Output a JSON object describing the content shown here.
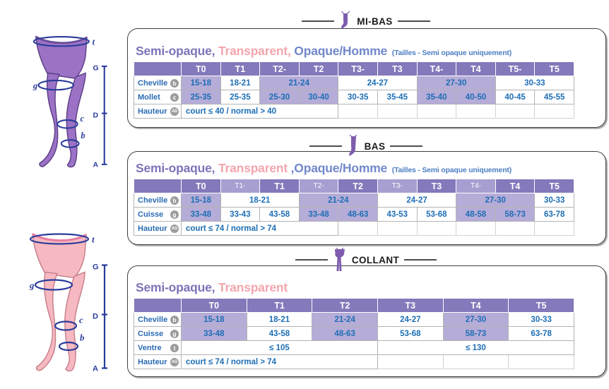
{
  "figures": [
    {
      "alt": "legs wearing purple semi-opaque tights",
      "fill": "#9B72C5",
      "outline": "#5C3E86",
      "band": "#6B4C9A",
      "marks": [
        "t",
        "g",
        "c",
        "b"
      ],
      "scale": [
        "G",
        "D",
        "A"
      ]
    },
    {
      "alt": "bare legs for transparent stockings",
      "fill": "#F6B9C1",
      "outline": "#C9818D",
      "band": "#E87FA0",
      "marks": [
        "t",
        "g",
        "c",
        "b"
      ],
      "scale": [
        "G",
        "D",
        "A"
      ]
    }
  ],
  "mark_color": "#2B3C9B",
  "colors": {
    "header_bg": "#8379BB",
    "header_minor_bg": "#A79ED1",
    "cell_highlight": "#B6ACD8",
    "cell_text": "#1D6EB5",
    "table_border": "#B4B4B4",
    "badge_bg": "#9C9C9C",
    "note_color": "#4D7FC3",
    "icon_purple": "#7D5BAE"
  },
  "sections": [
    {
      "title": "MI-BAS",
      "icon": "knee-high-stocking",
      "subtitle": [
        {
          "text": "Semi-opaque,",
          "color": "#7B74B9"
        },
        {
          "text": " Transparent,",
          "color": "#F5A6AD"
        },
        {
          "text": " Opaque/Homme",
          "color": "#7288CB"
        }
      ],
      "note": "(Tailles - Semi opaque uniquement)",
      "table": {
        "header": [
          {
            "label": "T0"
          },
          {
            "label": "T1"
          },
          {
            "label": "T2-"
          },
          {
            "label": "T2"
          },
          {
            "label": "T3-"
          },
          {
            "label": "T3"
          },
          {
            "label": "T4-"
          },
          {
            "label": "T4"
          },
          {
            "label": "T5-"
          },
          {
            "label": "T5"
          }
        ],
        "rows": [
          {
            "label": "Cheville",
            "badge": "b",
            "cells": [
              {
                "text": "15-18",
                "span": 1,
                "hl": true
              },
              {
                "text": "18-21",
                "span": 1
              },
              {
                "text": "21-24",
                "span": 2,
                "hl": true
              },
              {
                "text": "24-27",
                "span": 2
              },
              {
                "text": "27-30",
                "span": 2,
                "hl": true
              },
              {
                "text": "30-33",
                "span": 2
              }
            ]
          },
          {
            "label": "Mollet",
            "badge": "c",
            "cells": [
              {
                "text": "25-35",
                "span": 1,
                "hl": true
              },
              {
                "text": "25-35",
                "span": 1
              },
              {
                "text": "25-30",
                "span": 1,
                "hl": true
              },
              {
                "text": "30-40",
                "span": 1,
                "hl": true
              },
              {
                "text": "30-35",
                "span": 1
              },
              {
                "text": "35-45",
                "span": 1
              },
              {
                "text": "35-40",
                "span": 1,
                "hl": true
              },
              {
                "text": "40-50",
                "span": 1,
                "hl": true
              },
              {
                "text": "40-45",
                "span": 1
              },
              {
                "text": "45-55",
                "span": 1
              }
            ]
          }
        ],
        "footer": {
          "label": "Hauteur",
          "badge": "AD",
          "text": "court ≤ 40 / normal > 40",
          "span": 4
        }
      }
    },
    {
      "title": "BAS",
      "icon": "thigh-high-stocking",
      "subtitle": [
        {
          "text": "Semi-opaque,",
          "color": "#7B74B9"
        },
        {
          "text": " Transparent ",
          "color": "#F5A6AD"
        },
        {
          "text": ",Opaque/Homme",
          "color": "#7288CB"
        }
      ],
      "note": "(Tailles - Semi opaque uniquement)",
      "table": {
        "header": [
          {
            "label": "T0"
          },
          {
            "label": "T1-",
            "minor": true
          },
          {
            "label": "T1"
          },
          {
            "label": "T2-",
            "minor": true
          },
          {
            "label": "T2"
          },
          {
            "label": "T3-",
            "minor": true
          },
          {
            "label": "T3"
          },
          {
            "label": "T4-",
            "minor": true
          },
          {
            "label": "T4"
          },
          {
            "label": "T5"
          }
        ],
        "rows": [
          {
            "label": "Cheville",
            "badge": "b",
            "cells": [
              {
                "text": "15-18",
                "span": 1,
                "hl": true
              },
              {
                "text": "18-21",
                "span": 2
              },
              {
                "text": "21-24",
                "span": 2,
                "hl": true
              },
              {
                "text": "24-27",
                "span": 2
              },
              {
                "text": "27-30",
                "span": 2,
                "hl": true
              },
              {
                "text": "30-33",
                "span": 1
              }
            ]
          },
          {
            "label": "Cuisse",
            "badge": "g",
            "cells": [
              {
                "text": "33-48",
                "span": 1,
                "hl": true
              },
              {
                "text": "33-43",
                "span": 1
              },
              {
                "text": "43-58",
                "span": 1
              },
              {
                "text": "33-48",
                "span": 1,
                "hl": true
              },
              {
                "text": "48-63",
                "span": 1,
                "hl": true
              },
              {
                "text": "43-53",
                "span": 1
              },
              {
                "text": "53-68",
                "span": 1
              },
              {
                "text": "48-58",
                "span": 1,
                "hl": true
              },
              {
                "text": "58-73",
                "span": 1,
                "hl": true
              },
              {
                "text": "63-78",
                "span": 1
              }
            ]
          }
        ],
        "footer": {
          "label": "Hauteur",
          "badge": "AG",
          "text": "court ≤ 74 / normal > 74",
          "span": 4
        }
      }
    },
    {
      "title": "COLLANT",
      "icon": "tights",
      "subtitle": [
        {
          "text": "Semi-opaque,",
          "color": "#7B74B9"
        },
        {
          "text": " Transparent",
          "color": "#F5A6AD"
        }
      ],
      "note": "",
      "table": {
        "header": [
          {
            "label": "T0"
          },
          {
            "label": "T1"
          },
          {
            "label": "T2"
          },
          {
            "label": "T3"
          },
          {
            "label": "T4"
          },
          {
            "label": "T5"
          }
        ],
        "rows": [
          {
            "label": "Cheville",
            "badge": "b",
            "cells": [
              {
                "text": "15-18",
                "span": 1,
                "hl": true
              },
              {
                "text": "18-21",
                "span": 1
              },
              {
                "text": "21-24",
                "span": 1,
                "hl": true
              },
              {
                "text": "24-27",
                "span": 1
              },
              {
                "text": "27-30",
                "span": 1,
                "hl": true
              },
              {
                "text": "30-33",
                "span": 1
              }
            ]
          },
          {
            "label": "Cuisse",
            "badge": "g",
            "cells": [
              {
                "text": "33-48",
                "span": 1,
                "hl": true
              },
              {
                "text": "43-58",
                "span": 1
              },
              {
                "text": "48-63",
                "span": 1,
                "hl": true
              },
              {
                "text": "53-68",
                "span": 1
              },
              {
                "text": "58-73",
                "span": 1,
                "hl": true
              },
              {
                "text": "63-78",
                "span": 1
              }
            ]
          },
          {
            "label": "Ventre",
            "badge": "t",
            "cells": [
              {
                "text": "≤ 105",
                "span": 3
              },
              {
                "text": "≤ 130",
                "span": 3
              }
            ]
          }
        ],
        "footer": {
          "label": "Hauteur",
          "badge": "AG",
          "text": "court ≤ 74 / normal > 74",
          "span": 3
        }
      }
    }
  ]
}
